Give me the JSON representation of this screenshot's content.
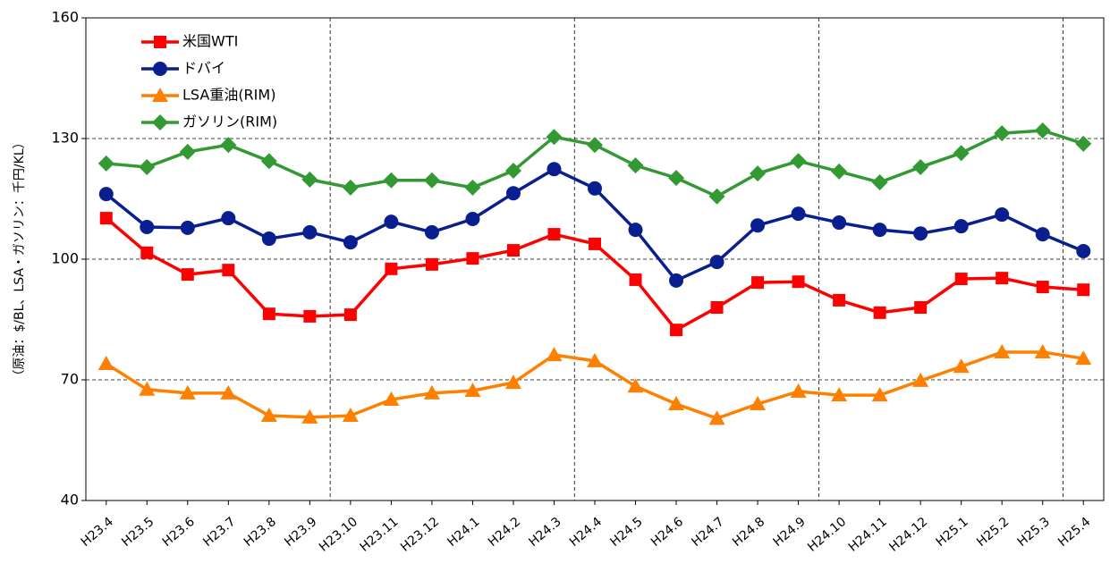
{
  "chart_data": {
    "type": "line",
    "y_label": "（原油：$/BL、LSA・ガソリン：千円/KL）",
    "categories": [
      "H23.4",
      "H23.5",
      "H23.6",
      "H23.7",
      "H23.8",
      "H23.9",
      "H23.10",
      "H23.11",
      "H23.12",
      "H24.1",
      "H24.2",
      "H24.3",
      "H24.4",
      "H24.5",
      "H24.6",
      "H24.7",
      "H24.8",
      "H24.9",
      "H24.10",
      "H24.11",
      "H24.12",
      "H25.1",
      "H25.2",
      "H25.3",
      "H25.4"
    ],
    "series": [
      {
        "name": "米国WTI",
        "color": "#ff0000",
        "marker": "square",
        "values": [
          110.2,
          101.6,
          96.2,
          97.3,
          86.4,
          85.8,
          86.2,
          97.6,
          98.7,
          100.2,
          102.2,
          106.2,
          103.8,
          94.9,
          82.4,
          88.0,
          94.2,
          94.4,
          89.8,
          86.7,
          88.0,
          95.1,
          95.3,
          93.1,
          92.4
        ]
      },
      {
        "name": "ドバイ",
        "color": "#0a1f8f",
        "marker": "circle",
        "values": [
          116.2,
          108.0,
          107.8,
          110.2,
          105.1,
          106.7,
          104.2,
          109.3,
          106.7,
          110.0,
          116.4,
          122.4,
          117.6,
          107.3,
          94.7,
          99.3,
          108.4,
          111.3,
          109.1,
          107.3,
          106.4,
          108.2,
          111.1,
          106.2,
          102.0
        ]
      },
      {
        "name": "LSA重油(RIM)",
        "color": "#ff8000",
        "marker": "triangle",
        "values": [
          74.0,
          67.6,
          66.7,
          66.7,
          61.1,
          60.7,
          61.1,
          65.1,
          66.7,
          67.3,
          69.3,
          76.2,
          74.7,
          68.4,
          64.0,
          60.4,
          64.0,
          67.1,
          66.2,
          66.2,
          69.8,
          73.3,
          76.9,
          76.9,
          75.3
        ]
      },
      {
        "name": "ガソリン(RIM)",
        "color": "#339933",
        "marker": "diamond",
        "values": [
          123.8,
          122.9,
          126.7,
          128.4,
          124.4,
          119.8,
          117.8,
          119.6,
          119.6,
          117.8,
          122.0,
          130.4,
          128.4,
          123.3,
          120.2,
          115.6,
          121.3,
          124.4,
          121.8,
          119.1,
          122.9,
          126.4,
          131.3,
          132.0,
          128.7
        ]
      }
    ],
    "ylim": [
      40,
      160
    ],
    "yticks": [
      40,
      70,
      100,
      130,
      160
    ],
    "grid": true
  }
}
